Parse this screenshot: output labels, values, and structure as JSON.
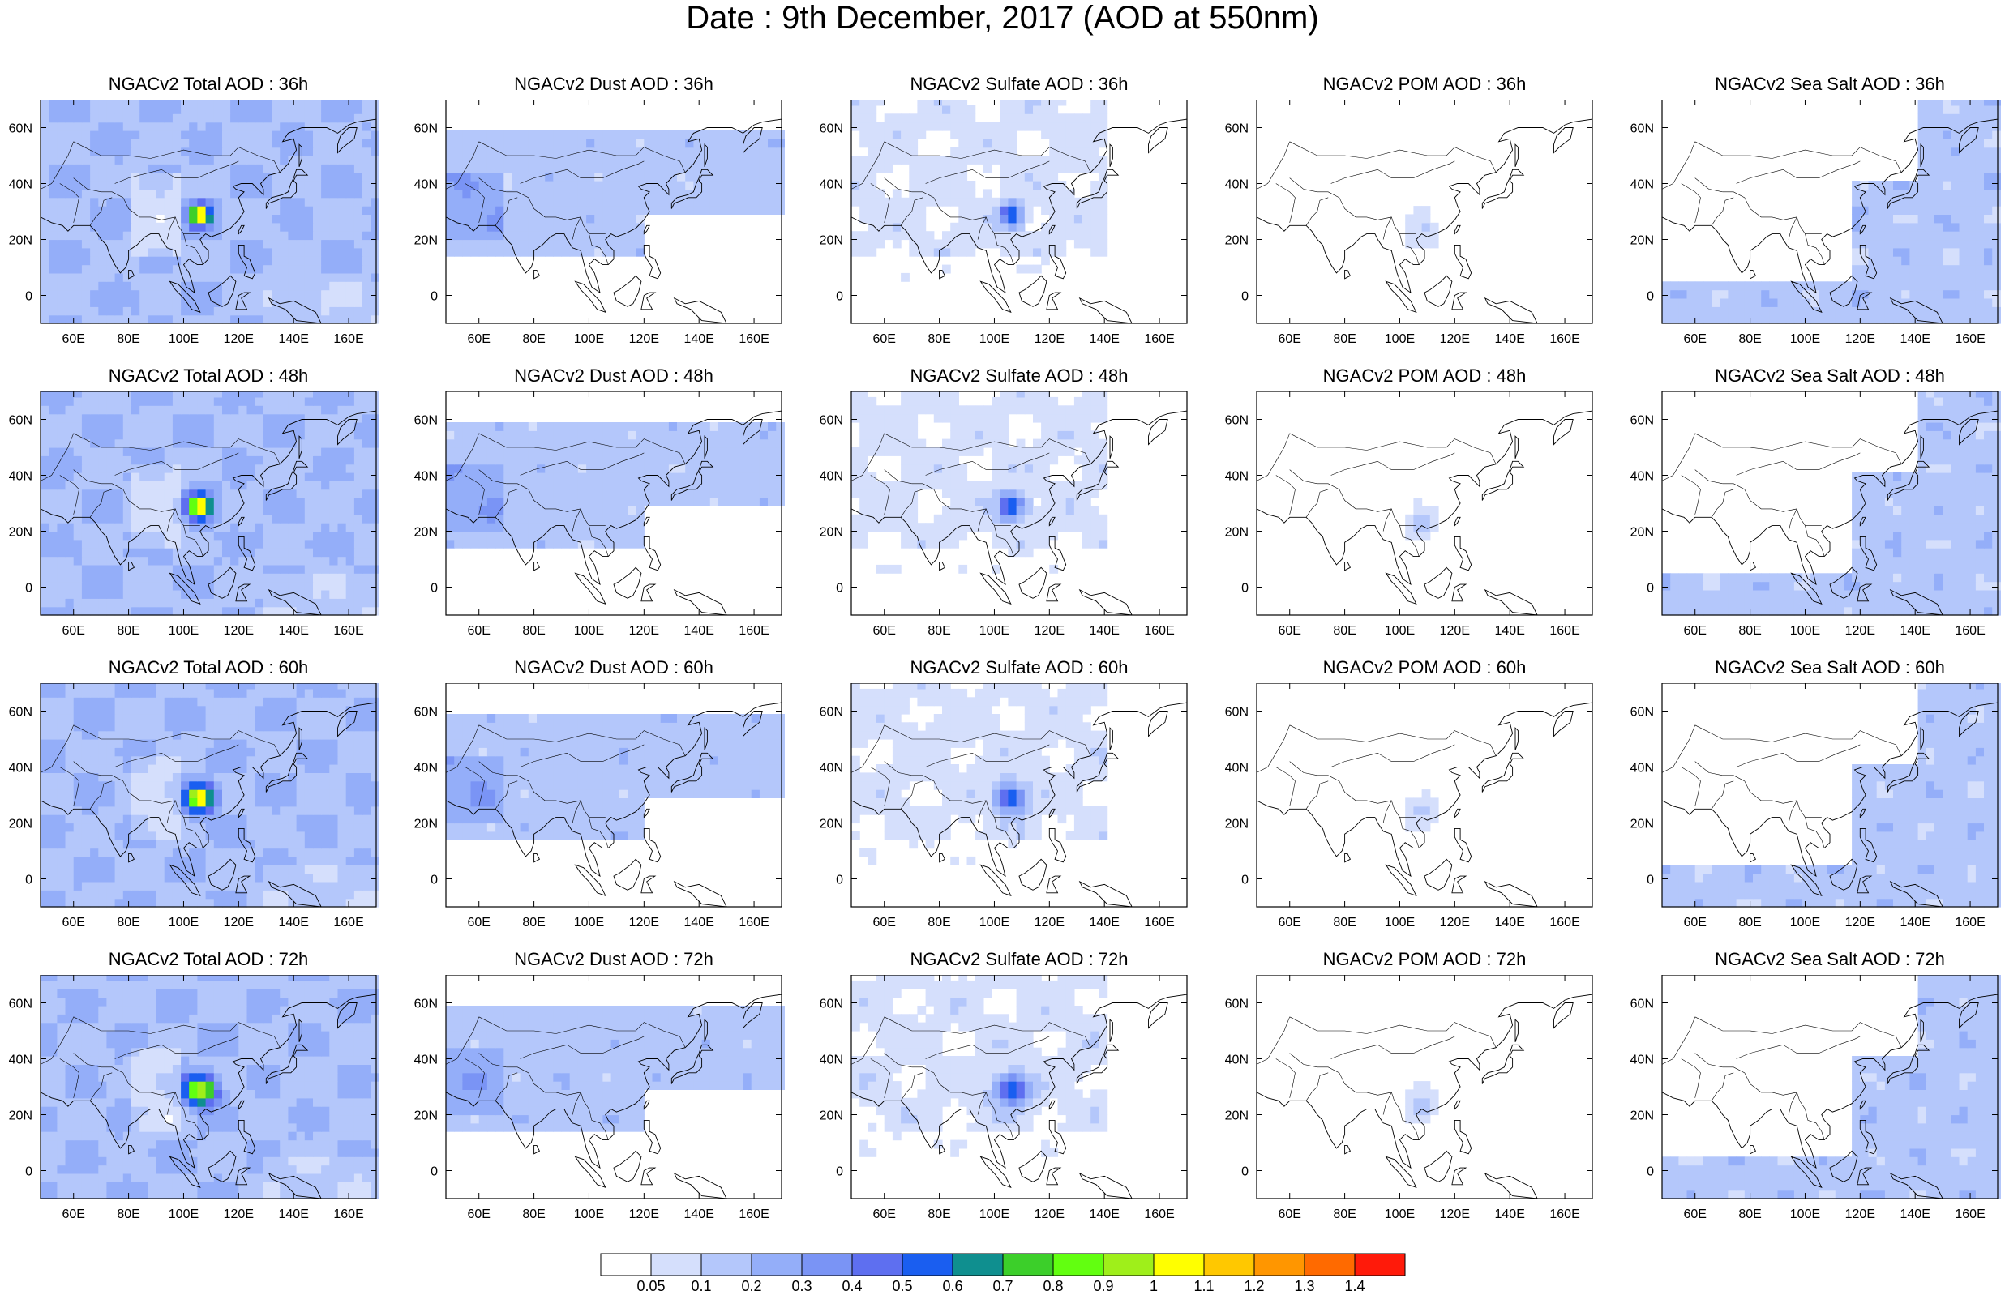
{
  "title": "Date : 9th December, 2017 (AOD at 550nm)",
  "rows": [
    "36h",
    "48h",
    "60h",
    "72h"
  ],
  "panel_titles": [
    [
      "NGACv2 Total AOD : 36h",
      "NGACv2 Dust AOD : 36h",
      "NGACv2 Sulfate AOD : 36h",
      "NGACv2 POM AOD : 36h",
      "NGACv2 Sea Salt AOD : 36h"
    ],
    [
      "NGACv2 Total AOD : 48h",
      "NGACv2 Dust AOD : 48h",
      "NGACv2 Sulfate AOD : 48h",
      "NGACv2 POM AOD : 48h",
      "NGACv2 Sea Salt AOD : 48h"
    ],
    [
      "NGACv2 Total AOD : 60h",
      "NGACv2 Dust AOD : 60h",
      "NGACv2 Sulfate AOD : 60h",
      "NGACv2 POM AOD : 60h",
      "NGACv2 Sea Salt AOD : 60h"
    ],
    [
      "NGACv2 Total AOD : 72h",
      "NGACv2 Dust AOD : 72h",
      "NGACv2 Sulfate AOD : 72h",
      "NGACv2 POM AOD : 72h",
      "NGACv2 Sea Salt  AOD : 72h"
    ]
  ],
  "lon_ticks": [
    "60E",
    "80E",
    "100E",
    "120E",
    "140E",
    "160E"
  ],
  "lat_ticks": [
    "60N",
    "40N",
    "20N",
    "0"
  ],
  "map_extent": {
    "lon": [
      48,
      170
    ],
    "lat": [
      -10,
      70
    ]
  },
  "colorbar": {
    "labels": [
      "0.05",
      "0.1",
      "0.2",
      "0.3",
      "0.4",
      "0.5",
      "0.6",
      "0.7",
      "0.8",
      "0.9",
      "1",
      "1.1",
      "1.2",
      "1.3",
      "1.4"
    ],
    "colors": [
      "#ffffff",
      "#d5dffc",
      "#b4c7fb",
      "#94aef9",
      "#7a94f5",
      "#5e6ff0",
      "#1a5ef0",
      "#0f8f8f",
      "#3ccf2a",
      "#62ff10",
      "#9fef1a",
      "#ffff00",
      "#ffc800",
      "#ff9600",
      "#ff6a00",
      "#ff1a0a"
    ]
  }
}
